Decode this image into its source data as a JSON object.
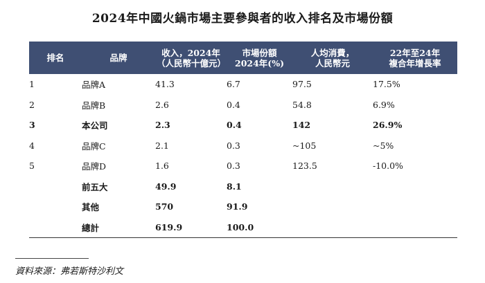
{
  "title": "2024年中國火鍋市場主要參與者的收入排名及市場份額",
  "table": {
    "headers": {
      "rank": "排名",
      "brand": "品牌",
      "revenue_line1": "收入，2024年",
      "revenue_line2": "（人民幣十億元）",
      "share_line1": "市場份額",
      "share_line2": "2024年(%)",
      "spend_line1": "人均消費，",
      "spend_line2": "人民幣元",
      "cagr_line1": "22年至24年",
      "cagr_line2": "複合年增長率"
    },
    "rows": [
      {
        "rank": "1",
        "brand": "品牌A",
        "revenue": "41.3",
        "share": "6.7",
        "spend": "97.5",
        "cagr": "17.5%",
        "bold": false
      },
      {
        "rank": "2",
        "brand": "品牌B",
        "revenue": "2.6",
        "share": "0.4",
        "spend": "54.8",
        "cagr": "6.9%",
        "bold": false
      },
      {
        "rank": "3",
        "brand": "本公司",
        "revenue": "2.3",
        "share": "0.4",
        "spend": "142",
        "cagr": "26.9%",
        "bold": true
      },
      {
        "rank": "4",
        "brand": "品牌C",
        "revenue": "2.1",
        "share": "0.3",
        "spend": "~105",
        "cagr": "~5%",
        "bold": false
      },
      {
        "rank": "5",
        "brand": "品牌D",
        "revenue": "1.6",
        "share": "0.3",
        "spend": "123.5",
        "cagr": "-10.0%",
        "bold": false
      },
      {
        "rank": "",
        "brand": "前五大",
        "revenue": "49.9",
        "share": "8.1",
        "spend": "",
        "cagr": "",
        "bold": true
      },
      {
        "rank": "",
        "brand": "其他",
        "revenue": "570",
        "share": "91.9",
        "spend": "",
        "cagr": "",
        "bold": true
      },
      {
        "rank": "",
        "brand": "總計",
        "revenue": "619.9",
        "share": "100.0",
        "spend": "",
        "cagr": "",
        "bold": true
      }
    ]
  },
  "source": "資料來源：弗若斯特沙利文",
  "colors": {
    "header_background": "#3f4f73",
    "header_text": "#ffffff",
    "body_text": "#1a1a1a"
  }
}
